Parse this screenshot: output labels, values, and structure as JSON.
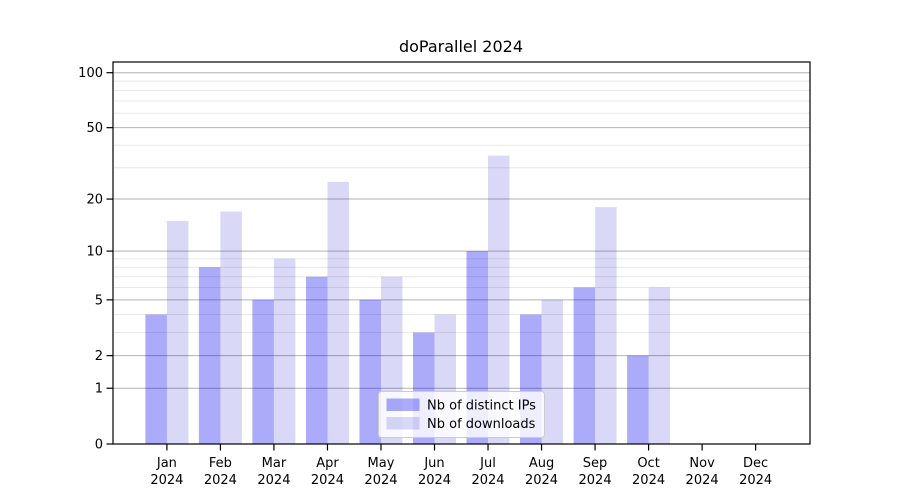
{
  "chart_data": {
    "type": "bar",
    "title": "doParallel 2024",
    "categories": [
      "Jan",
      "Feb",
      "Mar",
      "Apr",
      "May",
      "Jun",
      "Jul",
      "Aug",
      "Sep",
      "Oct",
      "Nov",
      "Dec"
    ],
    "year": "2024",
    "series": [
      {
        "name": "Nb of distinct IPs",
        "values": [
          4,
          8,
          5,
          7,
          5,
          3,
          10,
          4,
          6,
          2,
          0,
          0
        ],
        "color": "#aaaafa",
        "fill": "#0000f0",
        "fill_opacity": 0.33
      },
      {
        "name": "Nb of downloads",
        "values": [
          15,
          17,
          9,
          25,
          7,
          4,
          35,
          5,
          18,
          6,
          0,
          0
        ],
        "color": "#d9d9f7",
        "fill": "#0000c8",
        "fill_opacity": 0.15
      }
    ],
    "yscale": "log1p",
    "yticks": [
      0,
      1,
      2,
      5,
      10,
      20,
      50,
      100
    ],
    "ylim": [
      0,
      115
    ],
    "xlabel": "",
    "ylabel": "",
    "grid": true,
    "legend_position": "bottom-center",
    "colors": {
      "major_grid": "#b2b2b2",
      "minor_grid": "#e8e8e8",
      "spine": "#000000",
      "text": "#000000",
      "legend_border": "#cccccc",
      "legend_bg": "#ffffff"
    }
  }
}
